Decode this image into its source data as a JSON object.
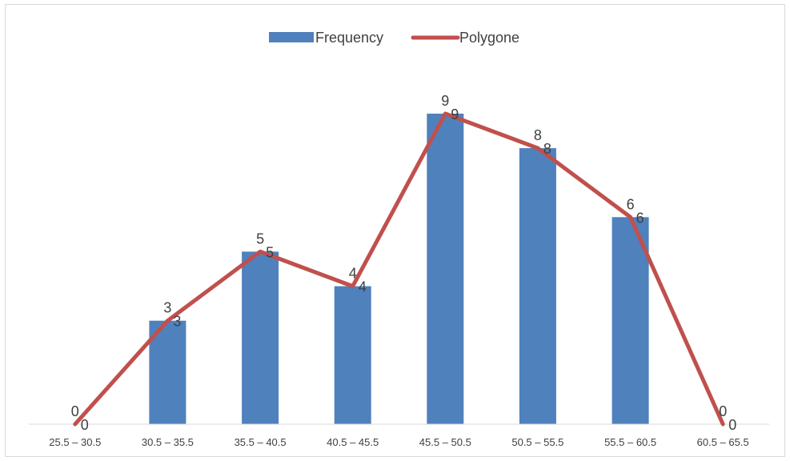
{
  "chart_data": {
    "type": "bar",
    "title": "",
    "xlabel": "",
    "ylabel": "",
    "ylim": [
      0,
      10
    ],
    "grid": false,
    "legend_position": "top-center",
    "categories": [
      "25.5 – 30.5",
      "30.5 – 35.5",
      "35.5 – 40.5",
      "40.5 – 45.5",
      "45.5 – 50.5",
      "50.5 – 55.5",
      "55.5 – 60.5",
      "60.5 – 65.5"
    ],
    "series": [
      {
        "name": "Frequency",
        "type": "bar",
        "color": "#4f81bd",
        "values": [
          0,
          3,
          5,
          4,
          9,
          8,
          6,
          0
        ],
        "labels": [
          "0",
          "3",
          "5",
          "4",
          "9",
          "8",
          "6",
          "0"
        ]
      },
      {
        "name": "Polygone",
        "type": "line",
        "color": "#c0504d",
        "values": [
          0,
          3,
          5,
          4,
          9,
          8,
          6,
          0
        ],
        "labels": [
          "0",
          "3",
          "5",
          "4",
          "9",
          "8",
          "6",
          "0"
        ]
      }
    ]
  }
}
